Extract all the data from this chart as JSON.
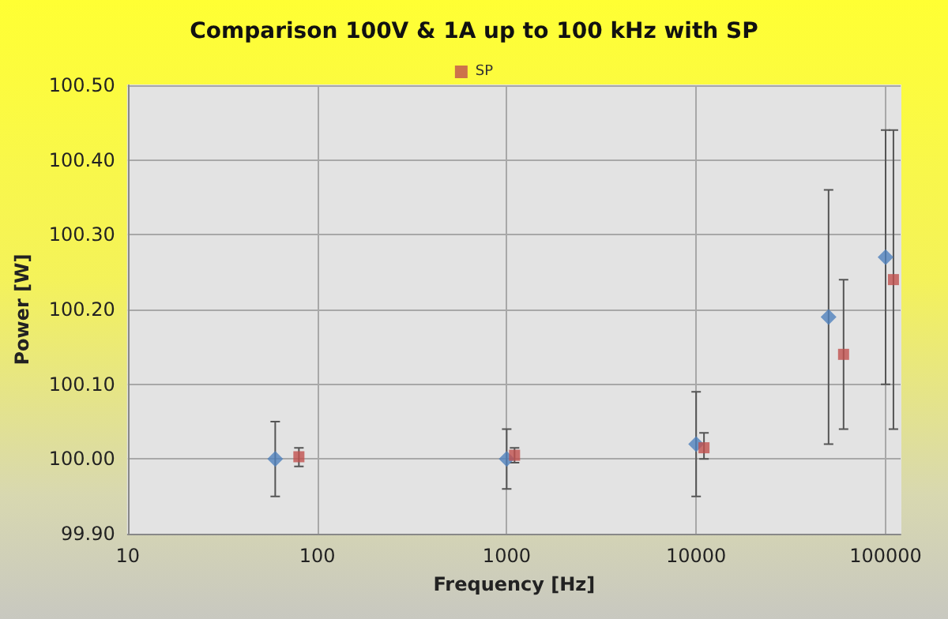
{
  "chart_data": {
    "type": "scatter",
    "title": "Comparison 100V & 1A up to 100 kHz with SP",
    "xlabel": "Frequency [Hz]",
    "ylabel": "Power [W]",
    "series": [
      {
        "color": "#4f81bd",
        "marker": "diamond",
        "x": [
          60,
          1000,
          10000,
          50000,
          100000
        ],
        "values": [
          100.0,
          100.0,
          100.02,
          100.19,
          100.27
        ],
        "errors": [
          [
            99.95,
            100.05
          ],
          [
            99.96,
            100.04
          ],
          [
            99.95,
            100.09
          ],
          [
            100.02,
            100.36
          ],
          [
            100.1,
            100.44
          ]
        ]
      },
      {
        "name": "SP",
        "color": "#c0504d",
        "marker": "square",
        "x": [
          80,
          1100,
          11000,
          60000,
          110000
        ],
        "values": [
          100.003,
          100.005,
          100.015,
          100.14,
          100.24
        ],
        "errors": [
          [
            99.99,
            100.015
          ],
          [
            99.995,
            100.015
          ],
          [
            100.0,
            100.035
          ],
          [
            100.04,
            100.24
          ],
          [
            100.04,
            100.44
          ]
        ]
      }
    ],
    "log": "x",
    "xlim": [
      10,
      120000
    ],
    "xticks": [
      10,
      100,
      1000,
      10000,
      100000
    ],
    "ylim": [
      99.9,
      100.5
    ],
    "yticks": [
      {
        "value": 99.9,
        "label": "99.90"
      },
      {
        "value": 100.0,
        "label": "100.00"
      },
      {
        "value": 100.1,
        "label": "100.10"
      },
      {
        "value": 100.2,
        "label": "100.20"
      },
      {
        "value": 100.3,
        "label": "100.30"
      },
      {
        "value": 100.4,
        "label": "100.40"
      },
      {
        "value": 100.5,
        "label": "100.50"
      }
    ],
    "grid": true,
    "legend": "top"
  }
}
